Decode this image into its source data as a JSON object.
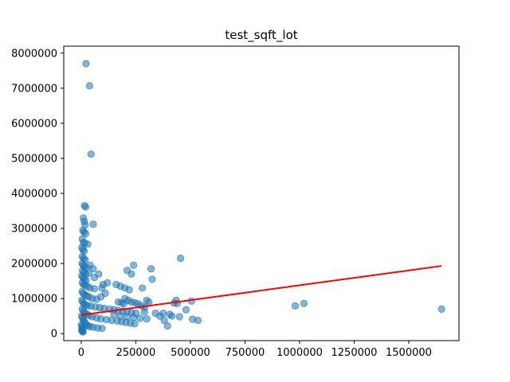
{
  "chart_data": {
    "type": "scatter",
    "title": "test_sqft_lot",
    "xlabel": "",
    "ylabel": "",
    "xlim": [
      -80000,
      1730000
    ],
    "ylim": [
      -200000,
      8200000
    ],
    "x_ticks": [
      0,
      250000,
      500000,
      750000,
      1000000,
      1250000,
      1500000
    ],
    "x_tick_labels": [
      "0",
      "250000",
      "500000",
      "750000",
      "1000000",
      "1250000",
      "1500000"
    ],
    "y_ticks": [
      0,
      1000000,
      2000000,
      3000000,
      4000000,
      5000000,
      6000000,
      7000000,
      8000000
    ],
    "y_tick_labels": [
      "0",
      "1000000",
      "2000000",
      "3000000",
      "4000000",
      "5000000",
      "6000000",
      "7000000",
      "8000000"
    ],
    "grid": false,
    "point_color": "#1f77b4",
    "line_color": "#ff0000",
    "series": [
      {
        "kind": "scatter",
        "points": [
          [
            22000,
            7700000
          ],
          [
            38000,
            7070000
          ],
          [
            45000,
            5120000
          ],
          [
            15000,
            3650000
          ],
          [
            20000,
            3610000
          ],
          [
            55000,
            3120000
          ],
          [
            10000,
            3300000
          ],
          [
            14000,
            3200000
          ],
          [
            18000,
            3100000
          ],
          [
            8000,
            2950000
          ],
          [
            12000,
            2900000
          ],
          [
            20000,
            2850000
          ],
          [
            5000,
            2700000
          ],
          [
            10000,
            2600000
          ],
          [
            16000,
            2580000
          ],
          [
            30000,
            2550000
          ],
          [
            3000,
            2450000
          ],
          [
            8000,
            2400000
          ],
          [
            13000,
            2350000
          ],
          [
            5000,
            2200000
          ],
          [
            11000,
            2150000
          ],
          [
            18000,
            2100000
          ],
          [
            4000,
            2000000
          ],
          [
            9000,
            1950000
          ],
          [
            15000,
            1900000
          ],
          [
            25000,
            1880000
          ],
          [
            6000,
            1800000
          ],
          [
            12000,
            1750000
          ],
          [
            20000,
            1700000
          ],
          [
            35000,
            1720000
          ],
          [
            3000,
            1650000
          ],
          [
            8000,
            1600000
          ],
          [
            14000,
            1550000
          ],
          [
            22000,
            1520000
          ],
          [
            5000,
            1450000
          ],
          [
            10000,
            1400000
          ],
          [
            18000,
            1380000
          ],
          [
            28000,
            1350000
          ],
          [
            40000,
            1300000
          ],
          [
            60000,
            1280000
          ],
          [
            4000,
            1200000
          ],
          [
            9000,
            1150000
          ],
          [
            16000,
            1100000
          ],
          [
            25000,
            1080000
          ],
          [
            35000,
            1050000
          ],
          [
            50000,
            1000000
          ],
          [
            70000,
            980000
          ],
          [
            90000,
            1050000
          ],
          [
            110000,
            1150000
          ],
          [
            95000,
            1300000
          ],
          [
            120000,
            1450000
          ],
          [
            100000,
            1400000
          ],
          [
            60000,
            1600000
          ],
          [
            80000,
            1700000
          ],
          [
            55000,
            1850000
          ],
          [
            40000,
            1950000
          ],
          [
            3000,
            950000
          ],
          [
            7000,
            900000
          ],
          [
            12000,
            850000
          ],
          [
            20000,
            820000
          ],
          [
            30000,
            800000
          ],
          [
            45000,
            780000
          ],
          [
            65000,
            760000
          ],
          [
            85000,
            740000
          ],
          [
            105000,
            720000
          ],
          [
            130000,
            700000
          ],
          [
            150000,
            680000
          ],
          [
            170000,
            660000
          ],
          [
            190000,
            640000
          ],
          [
            210000,
            620000
          ],
          [
            230000,
            600000
          ],
          [
            250000,
            580000
          ],
          [
            5000,
            700000
          ],
          [
            10000,
            650000
          ],
          [
            15000,
            600000
          ],
          [
            25000,
            560000
          ],
          [
            35000,
            520000
          ],
          [
            50000,
            480000
          ],
          [
            70000,
            450000
          ],
          [
            90000,
            420000
          ],
          [
            115000,
            400000
          ],
          [
            140000,
            380000
          ],
          [
            165000,
            360000
          ],
          [
            185000,
            340000
          ],
          [
            205000,
            320000
          ],
          [
            225000,
            300000
          ],
          [
            245000,
            280000
          ],
          [
            2000,
            500000
          ],
          [
            6000,
            450000
          ],
          [
            9000,
            400000
          ],
          [
            13000,
            350000
          ],
          [
            18000,
            300000
          ],
          [
            24000,
            260000
          ],
          [
            30000,
            220000
          ],
          [
            40000,
            200000
          ],
          [
            55000,
            180000
          ],
          [
            75000,
            160000
          ],
          [
            95000,
            150000
          ],
          [
            1000,
            250000
          ],
          [
            3000,
            200000
          ],
          [
            5000,
            150000
          ],
          [
            7000,
            120000
          ],
          [
            2000,
            100000
          ],
          [
            4000,
            80000
          ],
          [
            6000,
            60000
          ],
          [
            8000,
            50000
          ],
          [
            160000,
            1400000
          ],
          [
            180000,
            1350000
          ],
          [
            200000,
            1300000
          ],
          [
            220000,
            1250000
          ],
          [
            210000,
            1800000
          ],
          [
            230000,
            1700000
          ],
          [
            240000,
            1950000
          ],
          [
            200000,
            1000000
          ],
          [
            215000,
            950000
          ],
          [
            230000,
            900000
          ],
          [
            245000,
            880000
          ],
          [
            260000,
            850000
          ],
          [
            275000,
            800000
          ],
          [
            290000,
            750000
          ],
          [
            170000,
            900000
          ],
          [
            185000,
            880000
          ],
          [
            195000,
            850000
          ],
          [
            150000,
            550000
          ],
          [
            180000,
            500000
          ],
          [
            210000,
            480000
          ],
          [
            240000,
            460000
          ],
          [
            270000,
            440000
          ],
          [
            300000,
            420000
          ],
          [
            280000,
            1300000
          ],
          [
            300000,
            950000
          ],
          [
            290000,
            620000
          ],
          [
            320000,
            1850000
          ],
          [
            325000,
            1550000
          ],
          [
            310000,
            900000
          ],
          [
            340000,
            580000
          ],
          [
            360000,
            500000
          ],
          [
            375000,
            580000
          ],
          [
            380000,
            380000
          ],
          [
            395000,
            220000
          ],
          [
            405000,
            550000
          ],
          [
            415000,
            500000
          ],
          [
            425000,
            870000
          ],
          [
            435000,
            950000
          ],
          [
            440000,
            860000
          ],
          [
            450000,
            480000
          ],
          [
            455000,
            2150000
          ],
          [
            480000,
            680000
          ],
          [
            505000,
            930000
          ],
          [
            510000,
            410000
          ],
          [
            535000,
            380000
          ],
          [
            980000,
            790000
          ],
          [
            1020000,
            860000
          ],
          [
            1650000,
            700000
          ]
        ]
      },
      {
        "kind": "line",
        "points": [
          [
            0,
            530000
          ],
          [
            1650000,
            1930000
          ]
        ]
      }
    ]
  }
}
